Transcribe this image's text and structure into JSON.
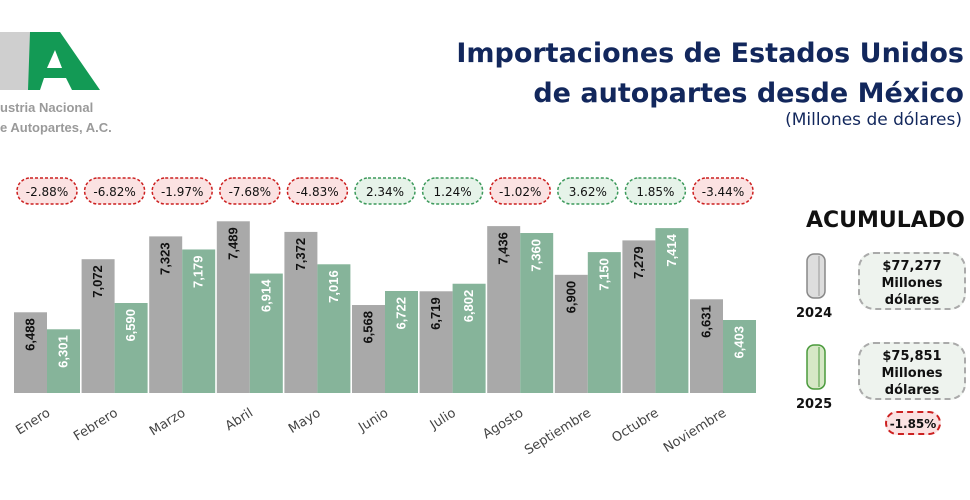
{
  "header": {
    "title_line1": "Importaciones de Estados Unidos",
    "title_line2": "de autopartes desde México",
    "subtitle": "(Millones de dólares)"
  },
  "logo": {
    "text_line1": "ustria Nacional",
    "text_line2": "e Autopartes, A.C."
  },
  "colors": {
    "y2024": "#a9a9a9",
    "y2025": "#86b49a",
    "neg_border": "#cc2020",
    "neg_bg": "#fbe2e2",
    "pos_border": "#3d9a5c",
    "pos_bg": "#e6f3e9"
  },
  "chart_data": {
    "type": "bar",
    "title": "Importaciones de Estados Unidos de autopartes desde México",
    "ylabel": "Millones de dólares",
    "ylim": [
      5600,
      7800
    ],
    "categories": [
      "Enero",
      "Febrero",
      "Marzo",
      "Abril",
      "Mayo",
      "Junio",
      "Julio",
      "Agosto",
      "Septiembre",
      "Octubre",
      "Noviembre"
    ],
    "series": [
      {
        "name": "2024",
        "values": [
          6488,
          7072,
          7323,
          7489,
          7372,
          6568,
          6719,
          7436,
          6900,
          7279,
          6631
        ],
        "labels": [
          "6,488",
          "7,072",
          "7,323",
          "7,489",
          "7,372",
          "6,568",
          "6,719",
          "7,436",
          "6,900",
          "7,279",
          "6,631"
        ]
      },
      {
        "name": "2025",
        "values": [
          6301,
          6590,
          7179,
          6914,
          7016,
          6722,
          6802,
          7360,
          7150,
          7414,
          6403
        ],
        "labels": [
          "6,301",
          "6,590",
          "7,179",
          "6,914",
          "7,016",
          "6,722",
          "6,802",
          "7,360",
          "7,150",
          "7,414",
          "6,403"
        ]
      }
    ],
    "changes": [
      "-2.88%",
      "-6.82%",
      "-1.97%",
      "-7.68%",
      "-4.83%",
      "2.34%",
      "1.24%",
      "-1.02%",
      "3.62%",
      "1.85%",
      "-3.44%"
    ]
  },
  "accumulated": {
    "title": "ACUMULADO",
    "y2024": {
      "year": "2024",
      "amount": "$77,277",
      "unit1": "Millones",
      "unit2": "dólares"
    },
    "y2025": {
      "year": "2025",
      "amount": "$75,851",
      "unit1": "Millones",
      "unit2": "dólares"
    },
    "change": "-1.85%"
  }
}
